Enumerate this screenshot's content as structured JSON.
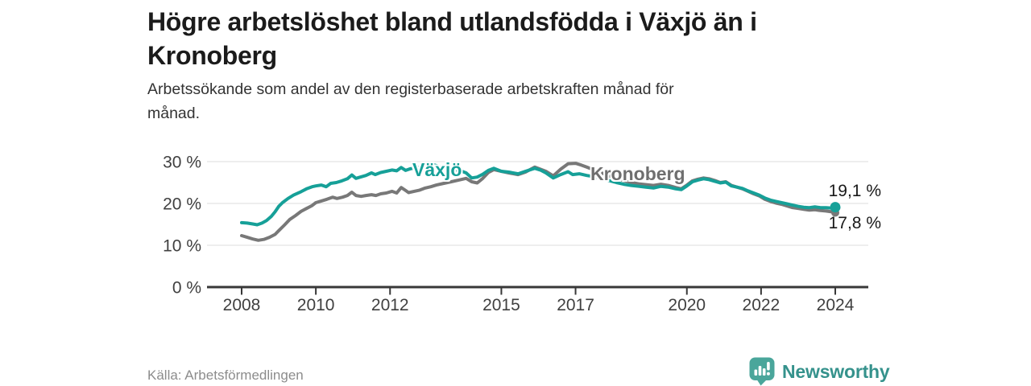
{
  "header": {
    "title_lines": [
      "Högre arbetslöshet bland utlandsfödda i Växjö än i",
      "Kronoberg"
    ],
    "subtitle_lines": [
      "Arbetssökande som andel av den registerbaserade arbetskraften månad för",
      "månad."
    ]
  },
  "footer": {
    "source": "Källa: Arbetsförmedlingen",
    "brand": "Newsworthy"
  },
  "colors": {
    "vaxjo": "#16a098",
    "kronoberg": "#787878",
    "axis": "#383838",
    "gridline": "#dcdcdc",
    "brand_teal": "#4aa69b"
  },
  "chart_data": {
    "type": "line",
    "title": "Högre arbetslöshet bland utlandsfödda i Växjö än i Kronoberg",
    "subtitle": "Arbetssökande som andel av den registerbaserade arbetskraften månad för månad.",
    "source": "Källa: Arbetsförmedlingen",
    "grid": "horizontal",
    "legend_position": "on-line-labels",
    "xlim": [
      2007.8,
      2024.9
    ],
    "ylim": [
      0,
      30
    ],
    "x_ticks": [
      {
        "year": 2008,
        "label": "2008"
      },
      {
        "year": 2010,
        "label": "2010"
      },
      {
        "year": 2012,
        "label": "2012"
      },
      {
        "year": 2015,
        "label": "2015"
      },
      {
        "year": 2017,
        "label": "2017"
      },
      {
        "year": 2020,
        "label": "2020"
      },
      {
        "year": 2022,
        "label": "2022"
      },
      {
        "year": 2024,
        "label": "2024"
      }
    ],
    "y_ticks": [
      {
        "value": 0,
        "label": "0 %"
      },
      {
        "value": 10,
        "label": "10 %"
      },
      {
        "value": 20,
        "label": "20 %"
      },
      {
        "value": 30,
        "label": "30 %"
      }
    ],
    "series": [
      {
        "name": "Växjö",
        "color": "#16a098",
        "end_label": "19,1 %",
        "end_value": 19.1,
        "points": [
          [
            2008.0,
            15.4
          ],
          [
            2008.15,
            15.3
          ],
          [
            2008.3,
            15.1
          ],
          [
            2008.42,
            14.9
          ],
          [
            2008.55,
            15.3
          ],
          [
            2008.67,
            15.9
          ],
          [
            2008.8,
            16.9
          ],
          [
            2008.9,
            18.0
          ],
          [
            2009.0,
            19.3
          ],
          [
            2009.1,
            20.2
          ],
          [
            2009.25,
            21.2
          ],
          [
            2009.4,
            22.0
          ],
          [
            2009.6,
            22.8
          ],
          [
            2009.75,
            23.5
          ],
          [
            2009.9,
            24.0
          ],
          [
            2010.0,
            24.2
          ],
          [
            2010.15,
            24.4
          ],
          [
            2010.28,
            24.0
          ],
          [
            2010.4,
            24.8
          ],
          [
            2010.55,
            25.0
          ],
          [
            2010.7,
            25.4
          ],
          [
            2010.85,
            25.9
          ],
          [
            2010.97,
            26.8
          ],
          [
            2011.08,
            26.0
          ],
          [
            2011.2,
            26.3
          ],
          [
            2011.35,
            26.7
          ],
          [
            2011.5,
            27.3
          ],
          [
            2011.6,
            26.9
          ],
          [
            2011.75,
            27.4
          ],
          [
            2011.9,
            27.7
          ],
          [
            2012.05,
            28.0
          ],
          [
            2012.18,
            27.8
          ],
          [
            2012.3,
            28.6
          ],
          [
            2012.42,
            27.9
          ],
          [
            2012.55,
            28.3
          ],
          [
            2012.7,
            28.5
          ],
          [
            2012.85,
            28.7
          ],
          [
            2013.0,
            29.0
          ],
          [
            2013.15,
            29.3
          ],
          [
            2013.3,
            28.9
          ],
          [
            2013.5,
            28.5
          ],
          [
            2013.7,
            28.2
          ],
          [
            2013.9,
            27.8
          ],
          [
            2014.05,
            27.3
          ],
          [
            2014.2,
            26.1
          ],
          [
            2014.35,
            26.3
          ],
          [
            2014.5,
            27.0
          ],
          [
            2014.65,
            27.9
          ],
          [
            2014.8,
            28.4
          ],
          [
            2015.0,
            27.7
          ],
          [
            2015.2,
            27.5
          ],
          [
            2015.45,
            27.1
          ],
          [
            2015.65,
            27.7
          ],
          [
            2015.9,
            28.4
          ],
          [
            2016.05,
            28.0
          ],
          [
            2016.2,
            27.3
          ],
          [
            2016.4,
            26.1
          ],
          [
            2016.6,
            26.9
          ],
          [
            2016.8,
            27.6
          ],
          [
            2016.92,
            26.9
          ],
          [
            2017.1,
            27.1
          ],
          [
            2017.3,
            26.7
          ],
          [
            2017.5,
            26.4
          ],
          [
            2017.7,
            26.0
          ],
          [
            2017.9,
            25.5
          ],
          [
            2018.1,
            25.0
          ],
          [
            2018.3,
            24.6
          ],
          [
            2018.5,
            24.3
          ],
          [
            2018.7,
            24.1
          ],
          [
            2018.9,
            23.9
          ],
          [
            2019.1,
            23.7
          ],
          [
            2019.3,
            24.1
          ],
          [
            2019.5,
            23.9
          ],
          [
            2019.7,
            23.5
          ],
          [
            2019.85,
            23.3
          ],
          [
            2020.0,
            24.2
          ],
          [
            2020.15,
            25.2
          ],
          [
            2020.3,
            25.6
          ],
          [
            2020.45,
            25.9
          ],
          [
            2020.6,
            25.7
          ],
          [
            2020.75,
            25.3
          ],
          [
            2020.9,
            24.9
          ],
          [
            2021.05,
            25.1
          ],
          [
            2021.2,
            24.2
          ],
          [
            2021.35,
            23.9
          ],
          [
            2021.5,
            23.6
          ],
          [
            2021.65,
            23.0
          ],
          [
            2021.8,
            22.5
          ],
          [
            2021.95,
            22.0
          ],
          [
            2022.1,
            21.3
          ],
          [
            2022.25,
            20.8
          ],
          [
            2022.4,
            20.5
          ],
          [
            2022.55,
            20.2
          ],
          [
            2022.7,
            19.9
          ],
          [
            2022.85,
            19.6
          ],
          [
            2023.0,
            19.3
          ],
          [
            2023.15,
            19.1
          ],
          [
            2023.3,
            19.0
          ],
          [
            2023.45,
            19.2
          ],
          [
            2023.6,
            19.0
          ],
          [
            2023.75,
            19.0
          ],
          [
            2023.9,
            18.9
          ],
          [
            2024.0,
            19.1
          ]
        ]
      },
      {
        "name": "Kronoberg",
        "color": "#787878",
        "end_label": "17,8 %",
        "end_value": 17.8,
        "points": [
          [
            2008.0,
            12.3
          ],
          [
            2008.15,
            11.9
          ],
          [
            2008.3,
            11.5
          ],
          [
            2008.45,
            11.2
          ],
          [
            2008.6,
            11.4
          ],
          [
            2008.75,
            11.9
          ],
          [
            2008.9,
            12.6
          ],
          [
            2009.0,
            13.5
          ],
          [
            2009.15,
            14.8
          ],
          [
            2009.3,
            16.2
          ],
          [
            2009.45,
            17.1
          ],
          [
            2009.6,
            18.1
          ],
          [
            2009.75,
            18.8
          ],
          [
            2009.9,
            19.5
          ],
          [
            2010.0,
            20.2
          ],
          [
            2010.15,
            20.6
          ],
          [
            2010.3,
            21.0
          ],
          [
            2010.45,
            21.5
          ],
          [
            2010.57,
            21.2
          ],
          [
            2010.72,
            21.5
          ],
          [
            2010.85,
            21.9
          ],
          [
            2010.97,
            22.7
          ],
          [
            2011.08,
            21.9
          ],
          [
            2011.22,
            21.7
          ],
          [
            2011.35,
            21.9
          ],
          [
            2011.5,
            22.1
          ],
          [
            2011.62,
            21.9
          ],
          [
            2011.75,
            22.3
          ],
          [
            2011.9,
            22.5
          ],
          [
            2012.05,
            22.9
          ],
          [
            2012.18,
            22.5
          ],
          [
            2012.3,
            23.8
          ],
          [
            2012.42,
            23.1
          ],
          [
            2012.5,
            22.6
          ],
          [
            2012.65,
            22.9
          ],
          [
            2012.8,
            23.2
          ],
          [
            2012.95,
            23.7
          ],
          [
            2013.1,
            24.0
          ],
          [
            2013.25,
            24.4
          ],
          [
            2013.45,
            24.8
          ],
          [
            2013.65,
            25.2
          ],
          [
            2013.85,
            25.6
          ],
          [
            2014.05,
            26.0
          ],
          [
            2014.2,
            25.2
          ],
          [
            2014.35,
            24.9
          ],
          [
            2014.5,
            26.0
          ],
          [
            2014.65,
            27.4
          ],
          [
            2014.8,
            28.1
          ],
          [
            2015.0,
            27.7
          ],
          [
            2015.2,
            27.3
          ],
          [
            2015.45,
            26.9
          ],
          [
            2015.65,
            27.5
          ],
          [
            2015.9,
            28.7
          ],
          [
            2016.05,
            28.2
          ],
          [
            2016.2,
            27.7
          ],
          [
            2016.4,
            26.6
          ],
          [
            2016.6,
            28.2
          ],
          [
            2016.8,
            29.5
          ],
          [
            2017.0,
            29.6
          ],
          [
            2017.15,
            29.2
          ],
          [
            2017.3,
            28.7
          ],
          [
            2017.5,
            28.0
          ],
          [
            2017.7,
            27.3
          ],
          [
            2017.9,
            26.6
          ],
          [
            2018.1,
            26.0
          ],
          [
            2018.3,
            25.5
          ],
          [
            2018.5,
            25.0
          ],
          [
            2018.7,
            24.7
          ],
          [
            2018.9,
            24.5
          ],
          [
            2019.1,
            24.3
          ],
          [
            2019.3,
            24.6
          ],
          [
            2019.5,
            24.3
          ],
          [
            2019.7,
            23.8
          ],
          [
            2019.85,
            23.5
          ],
          [
            2020.0,
            24.4
          ],
          [
            2020.15,
            25.4
          ],
          [
            2020.3,
            25.8
          ],
          [
            2020.45,
            26.1
          ],
          [
            2020.6,
            25.9
          ],
          [
            2020.75,
            25.5
          ],
          [
            2020.9,
            25.0
          ],
          [
            2021.05,
            25.2
          ],
          [
            2021.2,
            24.3
          ],
          [
            2021.35,
            23.9
          ],
          [
            2021.5,
            23.5
          ],
          [
            2021.65,
            22.9
          ],
          [
            2021.8,
            22.3
          ],
          [
            2021.95,
            21.8
          ],
          [
            2022.1,
            21.0
          ],
          [
            2022.25,
            20.5
          ],
          [
            2022.4,
            20.1
          ],
          [
            2022.55,
            19.8
          ],
          [
            2022.7,
            19.4
          ],
          [
            2022.85,
            19.0
          ],
          [
            2023.0,
            18.8
          ],
          [
            2023.15,
            18.6
          ],
          [
            2023.3,
            18.4
          ],
          [
            2023.45,
            18.5
          ],
          [
            2023.6,
            18.3
          ],
          [
            2023.75,
            18.2
          ],
          [
            2023.9,
            18.0
          ],
          [
            2024.0,
            17.8
          ]
        ]
      }
    ]
  }
}
